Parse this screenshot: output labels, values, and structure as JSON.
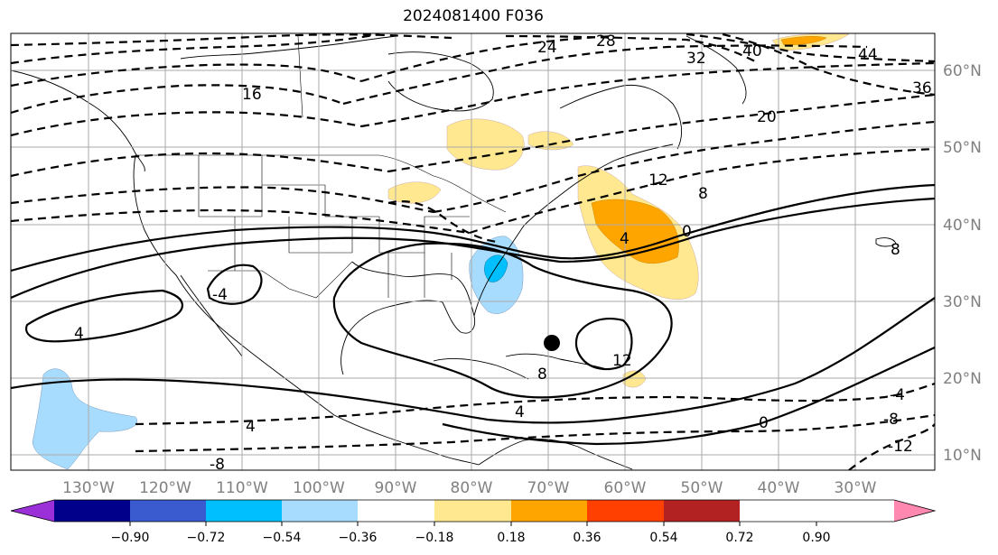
{
  "title": "2024081400 F036",
  "longitude_labels": [
    "130°W",
    "120°W",
    "110°W",
    "100°W",
    "90°W",
    "80°W",
    "70°W",
    "60°W",
    "50°W",
    "40°W",
    "30°W"
  ],
  "latitude_labels": [
    "60°N",
    "50°N",
    "40°N",
    "30°N",
    "20°N",
    "10°N"
  ],
  "contour_labels": [
    "24",
    "28",
    "32",
    "40",
    "44",
    "36",
    "20",
    "16",
    "12",
    "8",
    "0",
    "4",
    "-4",
    "12",
    "8",
    "4",
    "0",
    "-4",
    "-8",
    "-12",
    "4",
    "8",
    "4",
    "-8"
  ],
  "colorbar": {
    "tick_labels": [
      "−0.90",
      "−0.72",
      "−0.54",
      "−0.36",
      "−0.18",
      "0.18",
      "0.36",
      "0.54",
      "0.72",
      "0.90"
    ],
    "colors": [
      "#9b30d9",
      "#00008b",
      "#3a5bd0",
      "#00bfff",
      "#a8dcff",
      "#ffffff",
      "#ffe890",
      "#ffa500",
      "#ff4000",
      "#b22222",
      "#ff88b0"
    ]
  },
  "colors": {
    "land_outline": "#000000",
    "grid": "#aaaaaa",
    "contour": "#000000"
  }
}
